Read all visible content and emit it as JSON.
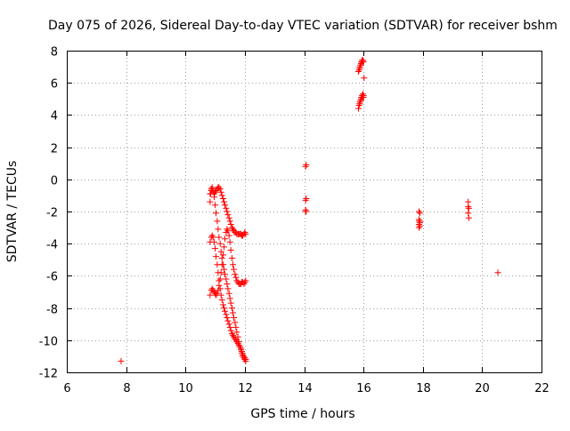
{
  "chart_data": {
    "type": "scatter",
    "title": "Day 075 of 2026, Sidereal Day-to-day VTEC variation (SDTVAR) for receiver bshm",
    "xlabel": "GPS time / hours",
    "ylabel": "SDTVAR / TECUs",
    "xlim": [
      6,
      22
    ],
    "ylim": [
      -12,
      8
    ],
    "xticks": [
      6,
      8,
      10,
      12,
      14,
      16,
      18,
      20,
      22
    ],
    "yticks": [
      -12,
      -10,
      -8,
      -6,
      -4,
      -2,
      0,
      2,
      4,
      6,
      8
    ],
    "xtick_labels": [
      "6",
      "8",
      "10",
      "12",
      "14",
      "16",
      "18",
      "20",
      "22"
    ],
    "ytick_labels": [
      "-12",
      "-10",
      "-8",
      "-6",
      "-4",
      "-2",
      "0",
      "2",
      "4",
      "6",
      "8"
    ],
    "grid": true,
    "marker": "+",
    "series": [
      {
        "name": "SDTVAR",
        "color": "#ff0000",
        "x": [
          7.83,
          10.83,
          10.85,
          10.87,
          10.9,
          10.93,
          10.97,
          11.0,
          11.03,
          11.07,
          11.1,
          11.13,
          11.17,
          11.2,
          11.23,
          11.27,
          11.3,
          11.33,
          11.37,
          11.4,
          11.43,
          11.47,
          11.5,
          11.53,
          11.57,
          11.6,
          11.63,
          11.67,
          11.7,
          11.73,
          11.77,
          11.8,
          11.83,
          11.87,
          11.9,
          11.93,
          11.97,
          12.0,
          12.03,
          10.83,
          10.87,
          10.9,
          10.93,
          10.97,
          11.0,
          11.03,
          11.07,
          11.1,
          11.13,
          11.17,
          11.2,
          11.23,
          11.27,
          11.3,
          11.33,
          11.37,
          11.4,
          11.43,
          11.47,
          11.5,
          11.53,
          11.57,
          11.6,
          11.63,
          11.67,
          11.7,
          11.73,
          11.77,
          11.8,
          11.83,
          11.87,
          11.9,
          11.93,
          11.97,
          12.0,
          12.03,
          10.83,
          10.87,
          10.9,
          10.93,
          10.97,
          11.0,
          11.03,
          11.07,
          11.1,
          11.13,
          11.17,
          11.2,
          11.23,
          11.27,
          11.3,
          11.33,
          11.37,
          11.4,
          11.43,
          11.47,
          11.5,
          11.53,
          11.57,
          11.6,
          11.63,
          11.67,
          11.7,
          11.73,
          11.77,
          11.8,
          11.83,
          11.87,
          11.9,
          11.93,
          11.97,
          12.0,
          12.03,
          10.83,
          10.87,
          10.9,
          10.93,
          10.97,
          11.0,
          11.03,
          11.07,
          11.1,
          11.13,
          11.17,
          11.2,
          11.23,
          11.27,
          11.3,
          11.33,
          11.37,
          11.4,
          11.43,
          11.47,
          11.5,
          11.53,
          11.57,
          11.6,
          11.63,
          11.67,
          11.7,
          11.73,
          11.77,
          11.8,
          11.83,
          11.87,
          11.9,
          11.93,
          11.97,
          12.0,
          12.03,
          14.05,
          14.07,
          14.05,
          14.07,
          14.05,
          14.07,
          14.05,
          15.83,
          15.85,
          15.87,
          15.88,
          15.9,
          15.92,
          15.93,
          15.95,
          15.97,
          15.98,
          16.0,
          16.02,
          15.83,
          15.85,
          15.87,
          15.88,
          15.9,
          15.92,
          15.93,
          15.95,
          15.97,
          15.98,
          16.0,
          16.0,
          17.87,
          17.9,
          17.87,
          17.9,
          17.87,
          17.9,
          17.87,
          17.9,
          17.88,
          19.53,
          19.53,
          19.55,
          19.53,
          19.55,
          20.53
        ],
        "y": [
          -11.3,
          -1.4,
          -0.9,
          -0.6,
          -0.5,
          -0.7,
          -1.1,
          -1.6,
          -2.1,
          -2.6,
          -3.1,
          -3.6,
          -4.0,
          -4.5,
          -4.9,
          -5.3,
          -5.6,
          -5.9,
          -6.2,
          -6.5,
          -6.8,
          -7.1,
          -7.4,
          -7.7,
          -8.0,
          -8.3,
          -8.6,
          -8.9,
          -9.2,
          -9.5,
          -9.8,
          -10.1,
          -10.4,
          -10.6,
          -10.8,
          -11.0,
          -11.1,
          -11.2,
          -11.3,
          -3.9,
          -3.6,
          -3.5,
          -3.6,
          -3.9,
          -4.3,
          -4.8,
          -5.3,
          -5.8,
          -6.3,
          -6.8,
          -7.2,
          -7.5,
          -7.8,
          -8.0,
          -8.2,
          -8.4,
          -8.6,
          -8.8,
          -9.0,
          -9.2,
          -9.4,
          -9.6,
          -9.7,
          -9.8,
          -9.9,
          -10.0,
          -10.1,
          -10.2,
          -10.3,
          -10.4,
          -10.5,
          -10.7,
          -10.9,
          -11.0,
          -11.1,
          -11.2,
          -7.2,
          -6.9,
          -6.8,
          -6.9,
          -7.0,
          -7.1,
          -7.2,
          -7.1,
          -6.9,
          -6.6,
          -6.2,
          -5.8,
          -5.3,
          -4.7,
          -4.2,
          -3.7,
          -3.3,
          -3.1,
          -3.2,
          -3.5,
          -3.9,
          -4.4,
          -4.9,
          -5.3,
          -5.6,
          -5.9,
          -6.1,
          -6.3,
          -6.4,
          -6.5,
          -6.5,
          -6.5,
          -6.4,
          -6.4,
          -6.5,
          -6.4,
          -6.3,
          -0.9,
          -0.7,
          -0.6,
          -0.8,
          -0.9,
          -0.8,
          -0.7,
          -0.6,
          -0.5,
          -0.5,
          -0.6,
          -0.8,
          -1.0,
          -1.2,
          -1.4,
          -1.6,
          -1.8,
          -2.0,
          -2.2,
          -2.4,
          -2.6,
          -2.8,
          -3.0,
          -3.1,
          -3.2,
          -3.3,
          -3.3,
          -3.4,
          -3.4,
          -3.4,
          -3.4,
          -3.4,
          -3.5,
          -3.5,
          -3.4,
          -3.3,
          -3.4,
          0.8,
          0.9,
          -1.3,
          -1.2,
          -1.9,
          -2.0,
          -2.0,
          6.7,
          6.8,
          6.9,
          7.0,
          7.1,
          7.2,
          7.3,
          7.4,
          7.3,
          7.4,
          7.3,
          6.3,
          4.4,
          4.6,
          4.7,
          4.8,
          4.9,
          5.0,
          5.1,
          5.2,
          5.1,
          5.3,
          5.2,
          5.1,
          -2.0,
          -2.1,
          -2.5,
          -2.6,
          -2.8,
          -2.9,
          -3.0,
          -2.7,
          -2.6,
          -1.4,
          -1.7,
          -1.8,
          -2.1,
          -2.4,
          -5.8
        ]
      }
    ]
  }
}
